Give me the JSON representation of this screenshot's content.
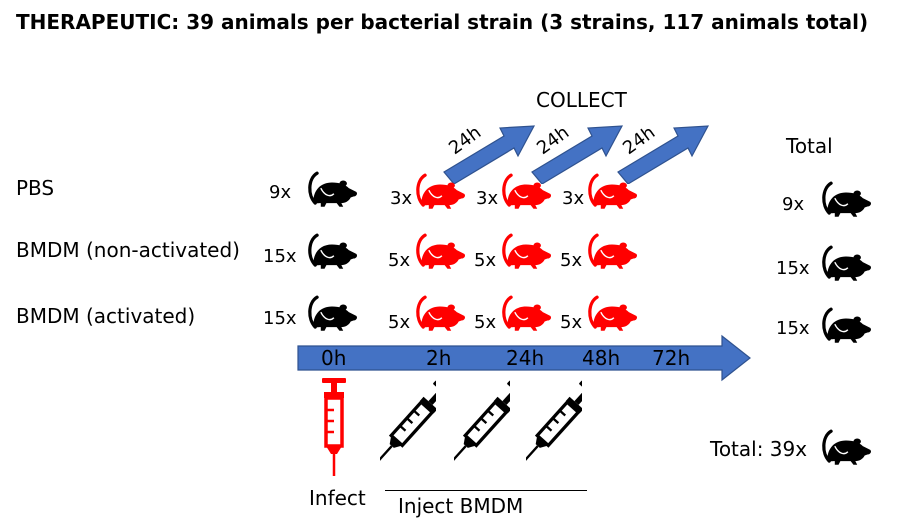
{
  "title": "THERAPEUTIC: 39 animals per bacterial strain (3 strains, 117 animals total)",
  "collect_label": "COLLECT",
  "total_header": "Total",
  "arrow_labels": [
    "24h",
    "24h",
    "24h"
  ],
  "groups": [
    {
      "label": "PBS",
      "count": "9x",
      "per_timepoint": [
        "3x",
        "3x",
        "3x"
      ],
      "total": "9x"
    },
    {
      "label": "BMDM (non-activated)",
      "count": "15x",
      "per_timepoint": [
        "5x",
        "5x",
        "5x"
      ],
      "total": "15x"
    },
    {
      "label": "BMDM (activated)",
      "count": "15x",
      "per_timepoint": [
        "5x",
        "5x",
        "5x"
      ],
      "total": "15x"
    }
  ],
  "timeline": [
    "0h",
    "2h",
    "24h",
    "48h",
    "72h"
  ],
  "infect_label": "Infect",
  "inject_label": "Inject BMDM",
  "grand_total": "Total: 39x",
  "colors": {
    "arrow": "#4472c4",
    "arrow_edge": "#2f528f",
    "infected": "#ff0000",
    "animal": "#000000"
  }
}
